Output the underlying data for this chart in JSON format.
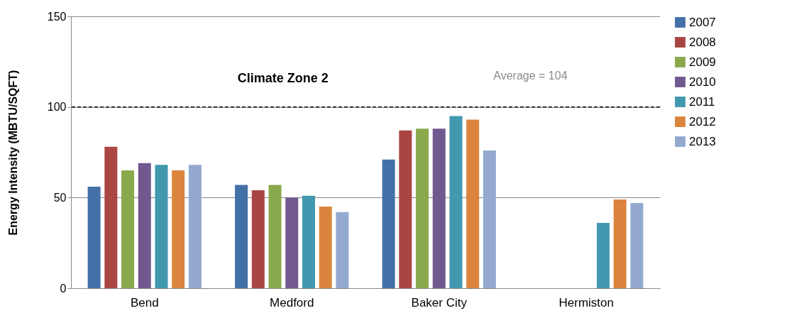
{
  "chart_data": {
    "type": "bar",
    "ylabel": "Energy Intensity (MBTU/SQFT)",
    "categories": [
      "Bend",
      "Medford",
      "Baker City",
      "Hermiston"
    ],
    "series": [
      {
        "name": "2007",
        "color": "#4470a8",
        "values": [
          56,
          57,
          71,
          null
        ]
      },
      {
        "name": "2008",
        "color": "#a94543",
        "values": [
          78,
          54,
          87,
          null
        ]
      },
      {
        "name": "2009",
        "color": "#8aa94c",
        "values": [
          65,
          57,
          88,
          null
        ]
      },
      {
        "name": "2010",
        "color": "#71588f",
        "values": [
          69,
          50,
          88,
          null
        ]
      },
      {
        "name": "2011",
        "color": "#4198af",
        "values": [
          68,
          51,
          95,
          36
        ]
      },
      {
        "name": "2012",
        "color": "#db843d",
        "values": [
          65,
          45,
          93,
          49
        ]
      },
      {
        "name": "2013",
        "color": "#93a9cf",
        "values": [
          68,
          42,
          76,
          47
        ]
      }
    ],
    "ylim": [
      0,
      150
    ],
    "yticks": [
      0,
      50,
      100,
      150
    ],
    "grid": "y",
    "legend": "right",
    "ref_lines": [
      {
        "axis": "y",
        "value": 100,
        "color": "#000000",
        "line_style": "dashed"
      }
    ],
    "annotations": [
      "Climate Zone 2",
      "Average =  104"
    ]
  }
}
